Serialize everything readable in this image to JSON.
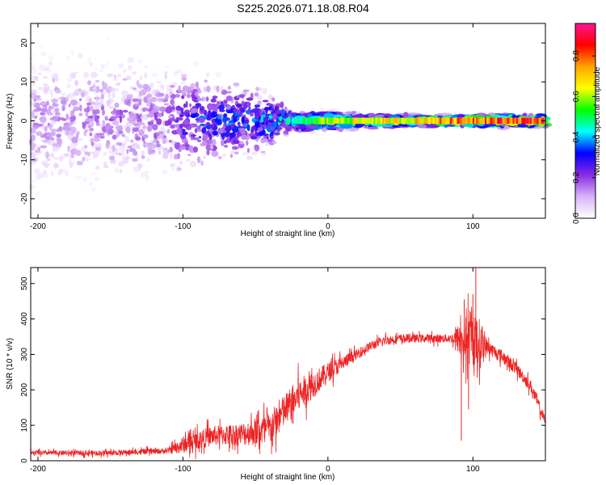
{
  "page_title": "S225.2026.071.18.08.R04",
  "colorbar": {
    "label": "Normalized spectral amplitude",
    "ticks": [
      "0.0",
      "0.2",
      "0.4",
      "0.6",
      "0.8"
    ],
    "tick_values": [
      0.0,
      0.2,
      0.4,
      0.6,
      0.8
    ],
    "range": [
      0,
      0.96
    ],
    "colormap": [
      "#ffffff",
      "#d8b4f8",
      "#8a2be2",
      "#0000ff",
      "#00ffff",
      "#00ff00",
      "#ffff00",
      "#ffa500",
      "#ff0000",
      "#ff1493"
    ]
  },
  "chart_data": [
    {
      "type": "heatmap",
      "xlabel": "Height of straight line (km)",
      "ylabel": "Frequency (Hz)",
      "xlim": [
        -205,
        150
      ],
      "ylim": [
        -25,
        25
      ],
      "xticks": [
        -200,
        -100,
        0,
        100
      ],
      "yticks": [
        -20,
        -10,
        0,
        10,
        20
      ],
      "xtick_labels": [
        "-200",
        "-100",
        "0",
        "100"
      ],
      "ytick_labels": [
        "-20",
        "-10",
        "0",
        "10",
        "20"
      ],
      "band_center_hz": 0,
      "spread_hz": [
        {
          "x": -200,
          "hz": 25
        },
        {
          "x": -100,
          "hz": 18
        },
        {
          "x": -40,
          "hz": 10
        },
        {
          "x": -25,
          "hz": 4
        },
        {
          "x": 0,
          "hz": 3
        },
        {
          "x": 50,
          "hz": 2
        },
        {
          "x": 150,
          "hz": 2
        }
      ],
      "peak_amplitude": [
        {
          "x": -200,
          "amp": 0.15
        },
        {
          "x": -110,
          "amp": 0.2
        },
        {
          "x": -100,
          "amp": 0.3
        },
        {
          "x": -40,
          "amp": 0.4
        },
        {
          "x": -20,
          "amp": 0.5
        },
        {
          "x": 0,
          "amp": 0.7
        },
        {
          "x": 50,
          "amp": 0.75
        },
        {
          "x": 100,
          "amp": 0.9
        },
        {
          "x": 150,
          "amp": 0.95
        }
      ]
    },
    {
      "type": "line",
      "xlabel": "Height of straight line (km)",
      "ylabel": "SNR (10 * v/v)",
      "xlim": [
        -205,
        150
      ],
      "ylim": [
        0,
        545
      ],
      "xticks": [
        -200,
        -100,
        0,
        100
      ],
      "yticks": [
        0,
        100,
        200,
        300,
        400,
        500
      ],
      "xtick_labels": [
        "-200",
        "-100",
        "0",
        "100"
      ],
      "ytick_labels": [
        "0",
        "100",
        "200",
        "300",
        "400",
        "500"
      ],
      "color": "#ee2222",
      "mean_curve": [
        {
          "x": -205,
          "y": 22
        },
        {
          "x": -150,
          "y": 22
        },
        {
          "x": -110,
          "y": 28
        },
        {
          "x": -100,
          "y": 45
        },
        {
          "x": -80,
          "y": 70
        },
        {
          "x": -60,
          "y": 75
        },
        {
          "x": -40,
          "y": 90
        },
        {
          "x": -30,
          "y": 140
        },
        {
          "x": -20,
          "y": 185
        },
        {
          "x": -10,
          "y": 215
        },
        {
          "x": 0,
          "y": 250
        },
        {
          "x": 10,
          "y": 275
        },
        {
          "x": 20,
          "y": 300
        },
        {
          "x": 30,
          "y": 325
        },
        {
          "x": 40,
          "y": 340
        },
        {
          "x": 50,
          "y": 345
        },
        {
          "x": 70,
          "y": 345
        },
        {
          "x": 85,
          "y": 345
        },
        {
          "x": 100,
          "y": 340
        },
        {
          "x": 110,
          "y": 320
        },
        {
          "x": 120,
          "y": 295
        },
        {
          "x": 130,
          "y": 260
        },
        {
          "x": 140,
          "y": 210
        },
        {
          "x": 150,
          "y": 110
        }
      ],
      "noise_amplitude": [
        {
          "x": -205,
          "a": 8
        },
        {
          "x": -110,
          "a": 10
        },
        {
          "x": -100,
          "a": 30
        },
        {
          "x": -60,
          "a": 40
        },
        {
          "x": -40,
          "a": 60
        },
        {
          "x": -20,
          "a": 60
        },
        {
          "x": 0,
          "a": 35
        },
        {
          "x": 20,
          "a": 18
        },
        {
          "x": 60,
          "a": 15
        },
        {
          "x": 85,
          "a": 15
        },
        {
          "x": 95,
          "a": 90
        },
        {
          "x": 105,
          "a": 90
        },
        {
          "x": 110,
          "a": 25
        },
        {
          "x": 150,
          "a": 20
        }
      ],
      "spikes": [
        {
          "x": 92,
          "y": 57
        },
        {
          "x": 94,
          "y": 455
        },
        {
          "x": 97,
          "y": 145
        },
        {
          "x": 100,
          "y": 470
        },
        {
          "x": 102,
          "y": 545
        },
        {
          "x": 103,
          "y": 235
        }
      ]
    }
  ]
}
